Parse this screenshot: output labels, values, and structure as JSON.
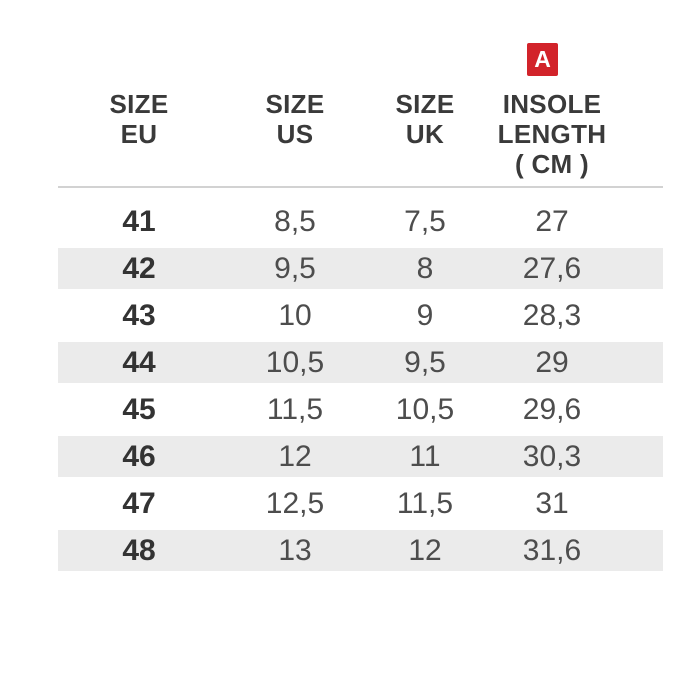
{
  "badge": {
    "label": "A"
  },
  "table": {
    "columns": [
      {
        "id": "size_eu",
        "label_lines": [
          "SIZE",
          "EU"
        ]
      },
      {
        "id": "size_us",
        "label_lines": [
          "SIZE",
          "US"
        ]
      },
      {
        "id": "size_uk",
        "label_lines": [
          "SIZE",
          "UK"
        ]
      },
      {
        "id": "insole_length_cm",
        "label_lines": [
          "INSOLE",
          "LENGTH",
          "( CM )"
        ]
      }
    ],
    "rows": [
      {
        "eu": "41",
        "us": "8,5",
        "uk": "7,5",
        "insole_cm": "27"
      },
      {
        "eu": "42",
        "us": "9,5",
        "uk": "8",
        "insole_cm": "27,6"
      },
      {
        "eu": "43",
        "us": "10",
        "uk": "9",
        "insole_cm": "28,3"
      },
      {
        "eu": "44",
        "us": "10,5",
        "uk": "9,5",
        "insole_cm": "29"
      },
      {
        "eu": "45",
        "us": "11,5",
        "uk": "10,5",
        "insole_cm": "29,6"
      },
      {
        "eu": "46",
        "us": "12",
        "uk": "11",
        "insole_cm": "30,3"
      },
      {
        "eu": "47",
        "us": "12,5",
        "uk": "11,5",
        "insole_cm": "31"
      },
      {
        "eu": "48",
        "us": "13",
        "uk": "12",
        "insole_cm": "31,6"
      }
    ]
  },
  "colors": {
    "accent_red": "#d2232a",
    "stripe_gray": "#ebebeb",
    "divider_gray": "#d2d2d2",
    "header_text": "#3a3a3a",
    "eu_text": "#333333",
    "value_text": "#4d4d4d",
    "background": "#ffffff"
  }
}
